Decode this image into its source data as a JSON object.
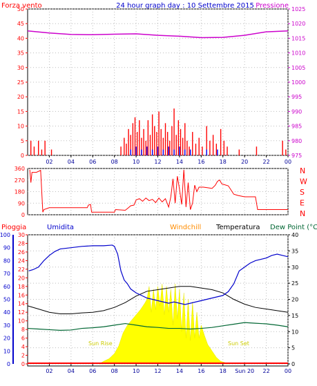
{
  "colors": {
    "wind": "#ff0000",
    "gust": "#0000ff",
    "pressure": "#cc00cc",
    "rain": "#ff0000",
    "humidity": "#0000cc",
    "windchill": "#ff8c00",
    "temperature": "#000000",
    "dewpoint": "#006633",
    "solar": "#ffff00",
    "heading": "#000099"
  },
  "top_labels": {
    "wind": "Forza vento",
    "title": "24 hour graph day : 10 Settembre 2015",
    "pressure": "Pressione"
  },
  "mid_labels": {
    "directions": [
      "N",
      "W",
      "S",
      "E",
      "N"
    ]
  },
  "bottom_labels": {
    "rain": "Pioggia",
    "humidity": "Umidita",
    "windchill": "Windchill",
    "temperature": "Temperatura",
    "dewpoint": "Dew Point (°C",
    "sunrise": "Sun Rise",
    "sunset": "Sun Set",
    "sunset_tick": "Sun 20"
  },
  "chart_data": [
    {
      "type": "bar",
      "name": "wind",
      "x_ticks": [
        "02",
        "04",
        "06",
        "08",
        "10",
        "12",
        "14",
        "16",
        "18",
        "20",
        "22",
        "00"
      ],
      "xlim": [
        0,
        24
      ],
      "ylim_left": [
        0,
        50
      ],
      "left_ticks": [
        0,
        5,
        10,
        15,
        20,
        25,
        30,
        35,
        40,
        45,
        50
      ],
      "ylim_right": [
        975,
        1025
      ],
      "right_ticks": [
        975,
        980,
        985,
        990,
        995,
        1000,
        1005,
        1010,
        1015,
        1020,
        1025
      ],
      "wind_bars": [
        [
          0.3,
          5
        ],
        [
          0.6,
          3
        ],
        [
          1.0,
          5
        ],
        [
          1.3,
          2
        ],
        [
          1.6,
          5
        ],
        [
          2.2,
          2
        ],
        [
          8.6,
          3
        ],
        [
          8.9,
          6
        ],
        [
          9.1,
          4
        ],
        [
          9.3,
          9
        ],
        [
          9.5,
          7
        ],
        [
          9.7,
          11
        ],
        [
          9.9,
          13
        ],
        [
          10.1,
          8
        ],
        [
          10.3,
          12
        ],
        [
          10.5,
          6
        ],
        [
          10.7,
          9
        ],
        [
          10.9,
          5
        ],
        [
          11.1,
          12
        ],
        [
          11.3,
          7
        ],
        [
          11.5,
          14
        ],
        [
          11.7,
          10
        ],
        [
          11.9,
          8
        ],
        [
          12.1,
          15
        ],
        [
          12.3,
          9
        ],
        [
          12.5,
          6
        ],
        [
          12.7,
          11
        ],
        [
          12.9,
          8
        ],
        [
          13.1,
          5
        ],
        [
          13.3,
          10
        ],
        [
          13.5,
          16
        ],
        [
          13.7,
          7
        ],
        [
          13.9,
          12
        ],
        [
          14.1,
          9
        ],
        [
          14.3,
          6
        ],
        [
          14.5,
          11
        ],
        [
          14.7,
          5
        ],
        [
          14.9,
          3
        ],
        [
          15.2,
          8
        ],
        [
          15.5,
          4
        ],
        [
          15.8,
          6
        ],
        [
          16.1,
          3
        ],
        [
          16.5,
          10
        ],
        [
          16.8,
          5
        ],
        [
          17.1,
          7
        ],
        [
          17.4,
          4
        ],
        [
          17.8,
          9
        ],
        [
          18.1,
          5
        ],
        [
          18.4,
          3
        ],
        [
          19.5,
          2
        ],
        [
          21.1,
          3
        ],
        [
          23.5,
          5
        ],
        [
          23.8,
          2
        ]
      ],
      "gust_bars": [
        [
          9.5,
          2
        ],
        [
          10.0,
          3
        ],
        [
          10.5,
          2
        ],
        [
          11.0,
          3
        ],
        [
          11.5,
          2
        ],
        [
          12.0,
          3
        ],
        [
          12.5,
          2
        ],
        [
          13.0,
          3
        ],
        [
          13.5,
          2
        ],
        [
          14.0,
          3
        ],
        [
          14.5,
          2
        ],
        [
          15.0,
          2
        ],
        [
          16.5,
          2
        ],
        [
          17.5,
          2
        ]
      ],
      "pressure": [
        [
          0,
          1017.5
        ],
        [
          2,
          1016.8
        ],
        [
          4,
          1016.3
        ],
        [
          6,
          1016.2
        ],
        [
          8,
          1016.4
        ],
        [
          10,
          1016.5
        ],
        [
          12,
          1016.0
        ],
        [
          14,
          1015.7
        ],
        [
          16,
          1015.2
        ],
        [
          18,
          1015.3
        ],
        [
          20,
          1016.0
        ],
        [
          22,
          1017.2
        ],
        [
          24,
          1017.5
        ]
      ]
    },
    {
      "type": "line",
      "name": "wind direction",
      "ylim": [
        0,
        360
      ],
      "y_ticks": [
        0,
        90,
        180,
        270,
        360
      ],
      "direction": [
        [
          0.2,
          350
        ],
        [
          0.3,
          250
        ],
        [
          0.4,
          330
        ],
        [
          0.8,
          330
        ],
        [
          1.2,
          345
        ],
        [
          1.4,
          20
        ],
        [
          1.5,
          40
        ],
        [
          2.0,
          55
        ],
        [
          4.0,
          55
        ],
        [
          5.5,
          55
        ],
        [
          5.6,
          75
        ],
        [
          5.8,
          80
        ],
        [
          5.9,
          20
        ],
        [
          8.0,
          20
        ],
        [
          8.1,
          40
        ],
        [
          9.0,
          35
        ],
        [
          9.3,
          55
        ],
        [
          9.5,
          70
        ],
        [
          9.8,
          75
        ],
        [
          10.0,
          115
        ],
        [
          10.3,
          125
        ],
        [
          10.6,
          105
        ],
        [
          10.9,
          130
        ],
        [
          11.2,
          110
        ],
        [
          11.5,
          120
        ],
        [
          11.8,
          95
        ],
        [
          12.1,
          130
        ],
        [
          12.4,
          100
        ],
        [
          12.7,
          125
        ],
        [
          13.0,
          60
        ],
        [
          13.2,
          140
        ],
        [
          13.4,
          280
        ],
        [
          13.6,
          90
        ],
        [
          13.8,
          300
        ],
        [
          14.0,
          200
        ],
        [
          14.2,
          80
        ],
        [
          14.4,
          350
        ],
        [
          14.6,
          60
        ],
        [
          14.8,
          250
        ],
        [
          15.0,
          40
        ],
        [
          15.2,
          90
        ],
        [
          15.4,
          230
        ],
        [
          15.6,
          180
        ],
        [
          15.8,
          215
        ],
        [
          16.2,
          215
        ],
        [
          16.6,
          210
        ],
        [
          17.0,
          205
        ],
        [
          17.3,
          230
        ],
        [
          17.5,
          260
        ],
        [
          17.7,
          270
        ],
        [
          17.9,
          240
        ],
        [
          18.1,
          235
        ],
        [
          18.5,
          225
        ],
        [
          19.0,
          160
        ],
        [
          19.4,
          150
        ],
        [
          20.0,
          140
        ],
        [
          21.0,
          140
        ],
        [
          21.2,
          40
        ],
        [
          23.5,
          40
        ],
        [
          24.0,
          40
        ]
      ]
    },
    {
      "type": "line",
      "name": "temperature humidity",
      "x_ticks": [
        "02",
        "04",
        "06",
        "08",
        "10",
        "12",
        "14",
        "16",
        "18",
        "Sun 20",
        "22",
        "00"
      ],
      "xlim": [
        0,
        24
      ],
      "humidity_ylim": [
        0,
        100
      ],
      "humidity_ticks": [
        0,
        10,
        20,
        30,
        40,
        50,
        60,
        70,
        80,
        90,
        100
      ],
      "rain_ylim": [
        0,
        30
      ],
      "rain_ticks": [
        0,
        2,
        4,
        6,
        8,
        10,
        12,
        14,
        16,
        18,
        20,
        22,
        24,
        26,
        28,
        30
      ],
      "temp_ylim": [
        0,
        40
      ],
      "temp_ticks": [
        0,
        5,
        10,
        15,
        20,
        25,
        30,
        35,
        40
      ],
      "humidity": [
        [
          0.1,
          72
        ],
        [
          0.5,
          73
        ],
        [
          1.0,
          75
        ],
        [
          1.5,
          80
        ],
        [
          2.0,
          84
        ],
        [
          2.5,
          87
        ],
        [
          3.0,
          89
        ],
        [
          4.0,
          90
        ],
        [
          5.0,
          91
        ],
        [
          6.0,
          91.5
        ],
        [
          7.0,
          91.5
        ],
        [
          7.8,
          92
        ],
        [
          8.0,
          91
        ],
        [
          8.3,
          85
        ],
        [
          8.6,
          72
        ],
        [
          8.9,
          65
        ],
        [
          9.2,
          62
        ],
        [
          9.5,
          58
        ],
        [
          10.0,
          55
        ],
        [
          10.5,
          53
        ],
        [
          11.0,
          51
        ],
        [
          11.5,
          50
        ],
        [
          12.0,
          49
        ],
        [
          12.5,
          48
        ],
        [
          13.0,
          47
        ],
        [
          13.5,
          48
        ],
        [
          14.0,
          47
        ],
        [
          14.5,
          46
        ],
        [
          15.0,
          47
        ],
        [
          15.5,
          48
        ],
        [
          16.0,
          49
        ],
        [
          16.5,
          50
        ],
        [
          17.0,
          51
        ],
        [
          17.5,
          52
        ],
        [
          18.0,
          53
        ],
        [
          18.5,
          56
        ],
        [
          19.0,
          62
        ],
        [
          19.5,
          72
        ],
        [
          20.0,
          75
        ],
        [
          20.5,
          78
        ],
        [
          21.0,
          80
        ],
        [
          21.5,
          81
        ],
        [
          22.0,
          82
        ],
        [
          22.5,
          84
        ],
        [
          23.0,
          85
        ],
        [
          23.5,
          84
        ],
        [
          24.0,
          83
        ]
      ],
      "temperature": [
        [
          0,
          18
        ],
        [
          1,
          17
        ],
        [
          2,
          16
        ],
        [
          3,
          15.5
        ],
        [
          4,
          15.5
        ],
        [
          5,
          15.8
        ],
        [
          6,
          16
        ],
        [
          7,
          16.5
        ],
        [
          8,
          17.5
        ],
        [
          9,
          19
        ],
        [
          10,
          21
        ],
        [
          11,
          22.5
        ],
        [
          12,
          23
        ],
        [
          13,
          23.5
        ],
        [
          14,
          24
        ],
        [
          15,
          24
        ],
        [
          16,
          23.5
        ],
        [
          17,
          23
        ],
        [
          18,
          22
        ],
        [
          19,
          20
        ],
        [
          20,
          18.5
        ],
        [
          21,
          17.5
        ],
        [
          22,
          17
        ],
        [
          23,
          16.5
        ],
        [
          24,
          16
        ]
      ],
      "dewpoint": [
        [
          0,
          11
        ],
        [
          1,
          10.8
        ],
        [
          2,
          10.6
        ],
        [
          3,
          10.4
        ],
        [
          4,
          10.5
        ],
        [
          5,
          11
        ],
        [
          6,
          11.2
        ],
        [
          7,
          11.5
        ],
        [
          8,
          12
        ],
        [
          9,
          12.5
        ],
        [
          10,
          12
        ],
        [
          11,
          11.5
        ],
        [
          12,
          11.3
        ],
        [
          13,
          11
        ],
        [
          14,
          11
        ],
        [
          15,
          10.8
        ],
        [
          16,
          11
        ],
        [
          17,
          11.3
        ],
        [
          18,
          11.8
        ],
        [
          19,
          12.3
        ],
        [
          20,
          12.8
        ],
        [
          21,
          12.6
        ],
        [
          22,
          12.4
        ],
        [
          23,
          12
        ],
        [
          24,
          11.5
        ]
      ],
      "solar": [
        [
          6.6,
          0
        ],
        [
          7.0,
          2
        ],
        [
          7.5,
          4
        ],
        [
          8.0,
          8
        ],
        [
          8.4,
          14
        ],
        [
          8.8,
          24
        ],
        [
          9.2,
          30
        ],
        [
          9.6,
          34
        ],
        [
          10.0,
          38
        ],
        [
          10.4,
          42
        ],
        [
          10.8,
          47
        ],
        [
          11.0,
          50
        ],
        [
          11.2,
          60
        ],
        [
          11.4,
          40
        ],
        [
          11.6,
          58
        ],
        [
          11.8,
          42
        ],
        [
          12.0,
          60
        ],
        [
          12.2,
          45
        ],
        [
          12.4,
          62
        ],
        [
          12.6,
          38
        ],
        [
          12.8,
          60
        ],
        [
          13.0,
          40
        ],
        [
          13.2,
          58
        ],
        [
          13.4,
          30
        ],
        [
          13.6,
          62
        ],
        [
          13.8,
          35
        ],
        [
          14.0,
          58
        ],
        [
          14.2,
          25
        ],
        [
          14.4,
          55
        ],
        [
          14.6,
          20
        ],
        [
          14.8,
          50
        ],
        [
          15.0,
          18
        ],
        [
          15.2,
          48
        ],
        [
          15.4,
          20
        ],
        [
          15.6,
          40
        ],
        [
          15.8,
          20
        ],
        [
          16.0,
          30
        ],
        [
          16.3,
          22
        ],
        [
          16.6,
          15
        ],
        [
          17.0,
          10
        ],
        [
          17.4,
          5
        ],
        [
          17.8,
          2
        ],
        [
          18.2,
          1
        ],
        [
          18.6,
          0
        ]
      ],
      "rain": [
        [
          0,
          0
        ],
        [
          24,
          0
        ]
      ]
    }
  ]
}
